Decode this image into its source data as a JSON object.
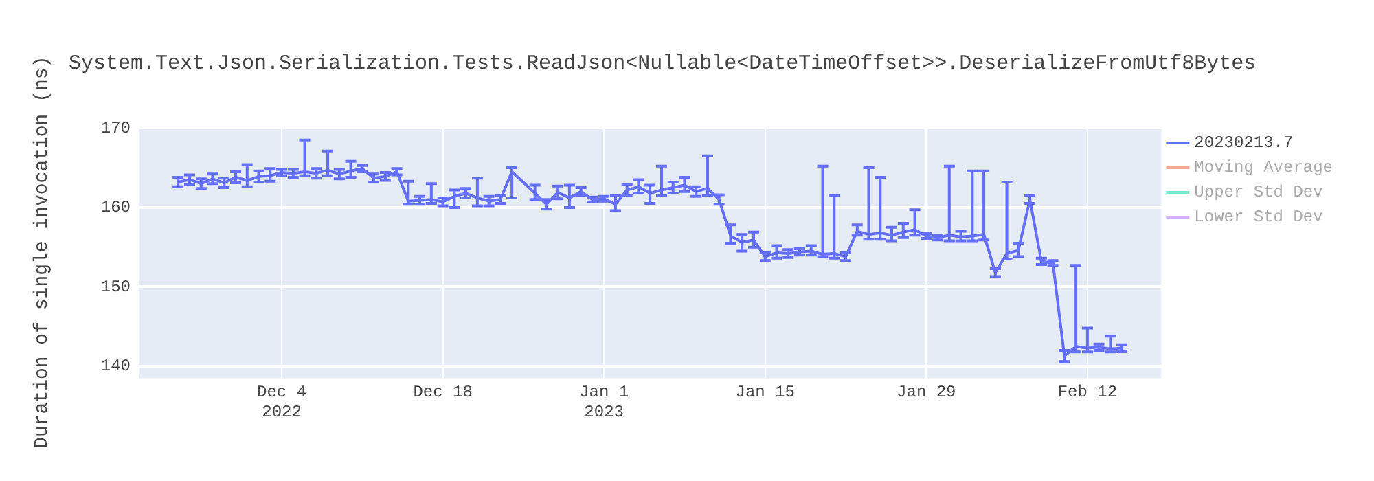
{
  "chart_data": {
    "type": "line",
    "title": "System.Text.Json.Serialization.Tests.ReadJson<Nullable<DateTimeOffset>>.DeserializeFromUtf8Bytes",
    "ylabel": "Duration of single invocation (ns)",
    "x": [
      "2022-11-25",
      "2022-11-26",
      "2022-11-27",
      "2022-11-28",
      "2022-11-29",
      "2022-11-30",
      "2022-12-01",
      "2022-12-02",
      "2022-12-03",
      "2022-12-04",
      "2022-12-05",
      "2022-12-06",
      "2022-12-07",
      "2022-12-08",
      "2022-12-09",
      "2022-12-10",
      "2022-12-11",
      "2022-12-12",
      "2022-12-13",
      "2022-12-14",
      "2022-12-15",
      "2022-12-16",
      "2022-12-17",
      "2022-12-18",
      "2022-12-19",
      "2022-12-20",
      "2022-12-21",
      "2022-12-22",
      "2022-12-23",
      "2022-12-24",
      "2022-12-26",
      "2022-12-27",
      "2022-12-28",
      "2022-12-29",
      "2022-12-30",
      "2022-12-31",
      "2023-01-01",
      "2023-01-02",
      "2023-01-03",
      "2023-01-04",
      "2023-01-05",
      "2023-01-06",
      "2023-01-07",
      "2023-01-08",
      "2023-01-09",
      "2023-01-10",
      "2023-01-11",
      "2023-01-12",
      "2023-01-13",
      "2023-01-14",
      "2023-01-15",
      "2023-01-16",
      "2023-01-17",
      "2023-01-18",
      "2023-01-19",
      "2023-01-20",
      "2023-01-21",
      "2023-01-22",
      "2023-01-23",
      "2023-01-24",
      "2023-01-25",
      "2023-01-26",
      "2023-01-27",
      "2023-01-28",
      "2023-01-29",
      "2023-01-30",
      "2023-01-31",
      "2023-02-01",
      "2023-02-02",
      "2023-02-03",
      "2023-02-04",
      "2023-02-05",
      "2023-02-06",
      "2023-02-07",
      "2023-02-08",
      "2023-02-09",
      "2023-02-10",
      "2023-02-11",
      "2023-02-12",
      "2023-02-13",
      "2023-02-14",
      "2023-02-15"
    ],
    "series": [
      {
        "name": "20230213.7",
        "color": "#636efa",
        "values": [
          163.2,
          163.5,
          163.0,
          163.6,
          163.1,
          163.8,
          163.4,
          163.9,
          164.0,
          164.4,
          164.3,
          164.5,
          164.3,
          164.7,
          164.2,
          164.6,
          164.9,
          163.7,
          163.9,
          164.5,
          160.8,
          160.9,
          161.0,
          160.7,
          161.4,
          161.8,
          161.2,
          160.8,
          161.0,
          164.5,
          161.8,
          160.4,
          161.9,
          161.2,
          162.0,
          161.0,
          161.1,
          160.4,
          162.2,
          162.6,
          161.8,
          162.2,
          162.5,
          162.8,
          162.0,
          162.4,
          161.0,
          156.4,
          155.6,
          155.9,
          153.8,
          154.3,
          154.2,
          154.4,
          154.5,
          154.1,
          154.2,
          153.8,
          157.0,
          156.6,
          156.8,
          156.5,
          156.9,
          157.2,
          156.4,
          156.2,
          156.5,
          156.3,
          156.4,
          156.6,
          151.8,
          154.2,
          154.6,
          161.0,
          153.2,
          153.0,
          141.3,
          142.5,
          142.3,
          142.4,
          142.2,
          142.3
        ],
        "errors": [
          0.6,
          0.6,
          0.6,
          0.6,
          0.6,
          0.7,
          [
            162.6,
            165.4
          ],
          0.7,
          [
            163.3,
            164.9
          ],
          0.4,
          0.5,
          [
            164.0,
            168.5
          ],
          0.6,
          [
            164.0,
            167.1
          ],
          0.6,
          [
            163.8,
            165.8
          ],
          0.4,
          0.5,
          0.5,
          0.4,
          [
            160.4,
            163.3
          ],
          0.5,
          [
            160.5,
            163.0
          ],
          0.5,
          [
            160.0,
            162.2
          ],
          0.6,
          [
            160.2,
            163.7
          ],
          0.6,
          0.5,
          [
            161.2,
            165.0
          ],
          [
            161.0,
            162.8
          ],
          [
            159.8,
            161.0
          ],
          0.8,
          [
            160.0,
            162.8
          ],
          0.5,
          0.3,
          0.3,
          [
            159.6,
            161.5
          ],
          0.7,
          [
            161.8,
            163.5
          ],
          [
            160.5,
            162.8
          ],
          [
            161.5,
            165.2
          ],
          0.7,
          [
            162.0,
            163.8
          ],
          0.6,
          [
            161.5,
            166.5
          ],
          0.6,
          [
            155.5,
            157.8
          ],
          [
            154.5,
            156.6
          ],
          [
            155.0,
            156.9
          ],
          0.5,
          [
            153.6,
            155.2
          ],
          0.5,
          0.4,
          [
            154.0,
            155.2
          ],
          [
            153.8,
            165.2
          ],
          [
            153.6,
            161.5
          ],
          0.5,
          [
            156.5,
            157.8
          ],
          [
            156.0,
            165.0
          ],
          [
            156.0,
            163.8
          ],
          [
            155.8,
            157.5
          ],
          [
            156.2,
            158.0
          ],
          [
            156.5,
            159.7
          ],
          0.3,
          0.3,
          [
            155.8,
            165.2
          ],
          [
            155.8,
            157.0
          ],
          [
            155.8,
            164.6
          ],
          [
            155.9,
            164.6
          ],
          [
            151.3,
            152.3
          ],
          [
            153.5,
            163.2
          ],
          [
            153.8,
            155.5
          ],
          0.5,
          0.4,
          0.3,
          [
            140.6,
            142.0
          ],
          [
            141.8,
            152.7
          ],
          [
            141.8,
            144.8
          ],
          0.4,
          [
            141.8,
            143.8
          ],
          0.4
        ]
      },
      {
        "name": "Moving Average",
        "color": "#f5a898",
        "values": [
          null,
          null,
          null,
          null,
          null,
          null,
          null,
          null,
          null,
          null,
          null,
          null,
          null,
          null,
          null,
          null,
          null,
          null,
          null,
          null,
          null,
          null,
          null,
          null,
          null,
          null,
          null,
          null,
          null,
          null,
          null,
          null,
          null,
          null,
          null,
          null,
          null,
          null,
          null,
          null,
          null,
          null,
          null,
          null,
          null,
          null,
          null,
          null,
          null,
          null,
          null,
          null,
          null,
          null,
          null,
          null,
          null,
          null,
          null,
          null,
          null,
          null,
          null,
          null,
          null,
          null,
          null,
          null,
          null,
          null,
          null,
          null,
          null,
          null,
          null,
          null,
          null,
          null,
          null,
          null,
          null,
          null
        ]
      },
      {
        "name": "Upper Std Dev",
        "color": "#80e5cb",
        "values": [
          null,
          null,
          null,
          null,
          null,
          null,
          null,
          null,
          null,
          null,
          null,
          null,
          null,
          null,
          null,
          null,
          null,
          null,
          null,
          null,
          null,
          null,
          null,
          null,
          null,
          null,
          null,
          null,
          null,
          null,
          null,
          null,
          null,
          null,
          null,
          null,
          null,
          null,
          null,
          null,
          null,
          null,
          null,
          null,
          null,
          null,
          null,
          null,
          null,
          null,
          null,
          null,
          null,
          null,
          null,
          null,
          null,
          null,
          null,
          null,
          null,
          null,
          null,
          null,
          null,
          null,
          null,
          null,
          null,
          null,
          null,
          null,
          null,
          null,
          null,
          null,
          null,
          null,
          null,
          null,
          null,
          null
        ]
      },
      {
        "name": "Lower Std Dev",
        "color": "#d5b1fd",
        "values": [
          null,
          null,
          null,
          null,
          null,
          null,
          null,
          null,
          null,
          null,
          null,
          null,
          null,
          null,
          null,
          null,
          null,
          null,
          null,
          null,
          null,
          null,
          null,
          null,
          null,
          null,
          null,
          null,
          null,
          null,
          null,
          null,
          null,
          null,
          null,
          null,
          null,
          null,
          null,
          null,
          null,
          null,
          null,
          null,
          null,
          null,
          null,
          null,
          null,
          null,
          null,
          null,
          null,
          null,
          null,
          null,
          null,
          null,
          null,
          null,
          null,
          null,
          null,
          null,
          null,
          null,
          null,
          null,
          null,
          null,
          null,
          null,
          null,
          null,
          null,
          null,
          null,
          null,
          null,
          null,
          null,
          null
        ]
      }
    ],
    "xlim": [
      "2022-11-21T14:00",
      "2023-02-18T10:00"
    ],
    "xticks": [
      {
        "value": "2022-12-04",
        "label": "Dec 4\n2022"
      },
      {
        "value": "2022-12-18",
        "label": "Dec 18"
      },
      {
        "value": "2023-01-01",
        "label": "Jan 1\n2023"
      },
      {
        "value": "2023-01-15",
        "label": "Jan 15"
      },
      {
        "value": "2023-01-29",
        "label": "Jan 29"
      },
      {
        "value": "2023-02-12",
        "label": "Feb 12"
      }
    ],
    "ylim": [
      138.5,
      170.2
    ],
    "yticks": [
      140,
      150,
      160,
      170
    ],
    "grid": true,
    "legend": "top right",
    "line_style": "solid"
  }
}
